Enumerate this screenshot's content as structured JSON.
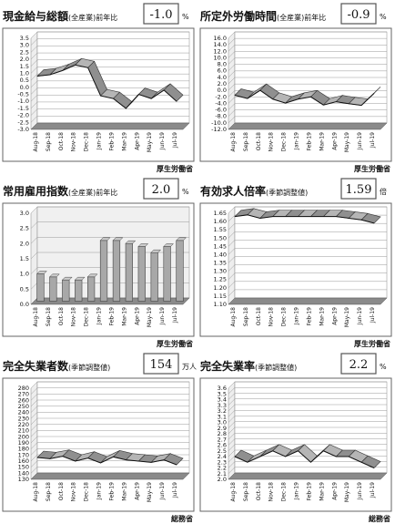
{
  "chart_data": [
    {
      "type": "line",
      "title": "現金給与総額",
      "subtitle": "(全産業)前年比",
      "latest": "-1.0",
      "unit": "%",
      "source": "厚生労働省",
      "categories": [
        "Aug-18",
        "Sep-18",
        "Oct-18",
        "Nov-18",
        "Dec-18",
        "Jan-19",
        "Feb-19",
        "Mar-19",
        "Apr-19",
        "May-19",
        "Jun-19",
        "Jul-19"
      ],
      "values": [
        0.8,
        0.9,
        1.2,
        1.6,
        1.4,
        -0.6,
        -0.8,
        -1.5,
        -0.5,
        -0.8,
        -0.2,
        -1.0
      ],
      "ylim": [
        -3,
        3.5
      ],
      "yticks": [
        3.5,
        {
          "value": 3,
          "label": "3.0"
        },
        2.5,
        {
          "value": 2,
          "label": "2.0"
        },
        1.5,
        {
          "value": 1,
          "label": "1.0"
        },
        0.5,
        {
          "value": 0,
          "label": "0.0"
        },
        -0.5,
        {
          "value": -1,
          "label": "-1.0"
        },
        -1.5,
        {
          "value": -2,
          "label": "-2.0"
        },
        -2.5,
        {
          "value": -3,
          "label": "-3.0"
        }
      ]
    },
    {
      "type": "line",
      "title": "所定外労働時間",
      "subtitle": "(全産業)前年比",
      "latest": "-0.9",
      "unit": "%",
      "source": "厚生労働省",
      "categories": [
        "Aug-18",
        "Sep-18",
        "Oct-18",
        "Nov-18",
        "Dec-18",
        "Jan-19",
        "Feb-19",
        "Mar-19",
        "Apr-19",
        "May-19",
        "Jun-19",
        "Jul-19"
      ],
      "values": [
        -1.5,
        -2.5,
        0.0,
        -2.7,
        -3.9,
        -2.7,
        -2.0,
        -4.5,
        -3.5,
        -4.1,
        -4.6,
        -0.9
      ],
      "ylim": [
        -12,
        16
      ],
      "yticks": [
        {
          "value": 16,
          "label": "16.0"
        },
        {
          "value": 14,
          "label": "14.0"
        },
        {
          "value": 12,
          "label": "12.0"
        },
        {
          "value": 10,
          "label": "10.0"
        },
        {
          "value": 8,
          "label": "8.0"
        },
        {
          "value": 6,
          "label": "6.0"
        },
        {
          "value": 4,
          "label": "4.0"
        },
        {
          "value": 2,
          "label": "2.0"
        },
        {
          "value": 0,
          "label": "0.0"
        },
        {
          "value": -2,
          "label": "-2.0"
        },
        {
          "value": -4,
          "label": "-4.0"
        },
        {
          "value": -6,
          "label": "-6.0"
        },
        {
          "value": -8,
          "label": "-8.0"
        },
        {
          "value": -10,
          "label": "-10.0"
        },
        {
          "value": -12,
          "label": "-12.0"
        }
      ]
    },
    {
      "type": "bar",
      "title": "常用雇用指数",
      "subtitle": "(全産業)前年比",
      "latest": "2.0",
      "unit": "%",
      "source": "厚生労働省",
      "categories": [
        "Aug-18",
        "Sep-18",
        "Oct-18",
        "Nov-18",
        "Dec-18",
        "Jan-19",
        "Feb-19",
        "Mar-19",
        "Apr-19",
        "May-19",
        "Jun-19",
        "Jul-19"
      ],
      "values": [
        0.9,
        0.8,
        0.7,
        0.7,
        0.8,
        2.0,
        2.0,
        1.9,
        1.8,
        1.6,
        1.8,
        2.0
      ],
      "ylim": [
        0,
        3
      ],
      "yticks": [
        {
          "value": 3,
          "label": "3.0"
        },
        2.5,
        {
          "value": 2,
          "label": "2.0"
        },
        1.5,
        {
          "value": 1,
          "label": "1.0"
        },
        0.5,
        {
          "value": 0,
          "label": "0.0"
        }
      ]
    },
    {
      "type": "line",
      "title": "有効求人倍率",
      "subtitle": "(季節調整値)",
      "latest": "1.59",
      "unit": "倍",
      "source": "厚生労働省",
      "categories": [
        "Aug-18",
        "Sep-18",
        "Oct-18",
        "Nov-18",
        "Dec-18",
        "Jan-19",
        "Feb-19",
        "Mar-19",
        "Apr-19",
        "May-19",
        "Jun-19",
        "Jul-19"
      ],
      "values": [
        1.63,
        1.64,
        1.62,
        1.63,
        1.63,
        1.63,
        1.63,
        1.63,
        1.63,
        1.62,
        1.61,
        1.59
      ],
      "ylim": [
        1.1,
        1.65
      ],
      "yticks": [
        1.65,
        {
          "value": 1.6,
          "label": "1.60"
        },
        1.55,
        {
          "value": 1.5,
          "label": "1.50"
        },
        1.45,
        {
          "value": 1.4,
          "label": "1.40"
        },
        1.35,
        {
          "value": 1.3,
          "label": "1.30"
        },
        1.25,
        {
          "value": 1.2,
          "label": "1.20"
        },
        1.15,
        {
          "value": 1.1,
          "label": "1.10"
        }
      ]
    },
    {
      "type": "line",
      "title": "完全失業者数",
      "subtitle": "(季節調整値)",
      "latest": "154",
      "unit": "万人",
      "source": "総務省",
      "categories": [
        "Aug-18",
        "Sep-18",
        "Oct-18",
        "Nov-18",
        "Dec-18",
        "Jan-19",
        "Feb-19",
        "Mar-19",
        "Apr-19",
        "May-19",
        "Jun-19",
        "Jul-19"
      ],
      "values": [
        166,
        164,
        168,
        160,
        165,
        157,
        167,
        162,
        160,
        158,
        162,
        154
      ],
      "ylim": [
        130,
        280
      ],
      "yticks": [
        280,
        270,
        260,
        250,
        240,
        230,
        220,
        210,
        200,
        190,
        180,
        170,
        160,
        150,
        140,
        130
      ]
    },
    {
      "type": "line",
      "title": "完全失業率",
      "subtitle": "(季節調整値)",
      "latest": "2.2",
      "unit": "%",
      "source": "総務省",
      "categories": [
        "Aug-18",
        "Sep-18",
        "Oct-18",
        "Nov-18",
        "Dec-18",
        "Jan-19",
        "Feb-19",
        "Mar-19",
        "Apr-19",
        "May-19",
        "Jun-19",
        "Jul-19"
      ],
      "values": [
        2.4,
        2.3,
        2.4,
        2.5,
        2.4,
        2.5,
        2.3,
        2.5,
        2.4,
        2.4,
        2.3,
        2.2
      ],
      "ylim": [
        2,
        3.6
      ],
      "yticks": [
        3.6,
        3.5,
        3.4,
        3.3,
        3.2,
        3.1,
        {
          "value": 3,
          "label": "3.0"
        },
        2.9,
        2.8,
        2.7,
        2.6,
        2.5,
        2.4,
        2.3,
        2.2,
        2.1,
        {
          "value": 2,
          "label": "2.0"
        }
      ]
    }
  ]
}
